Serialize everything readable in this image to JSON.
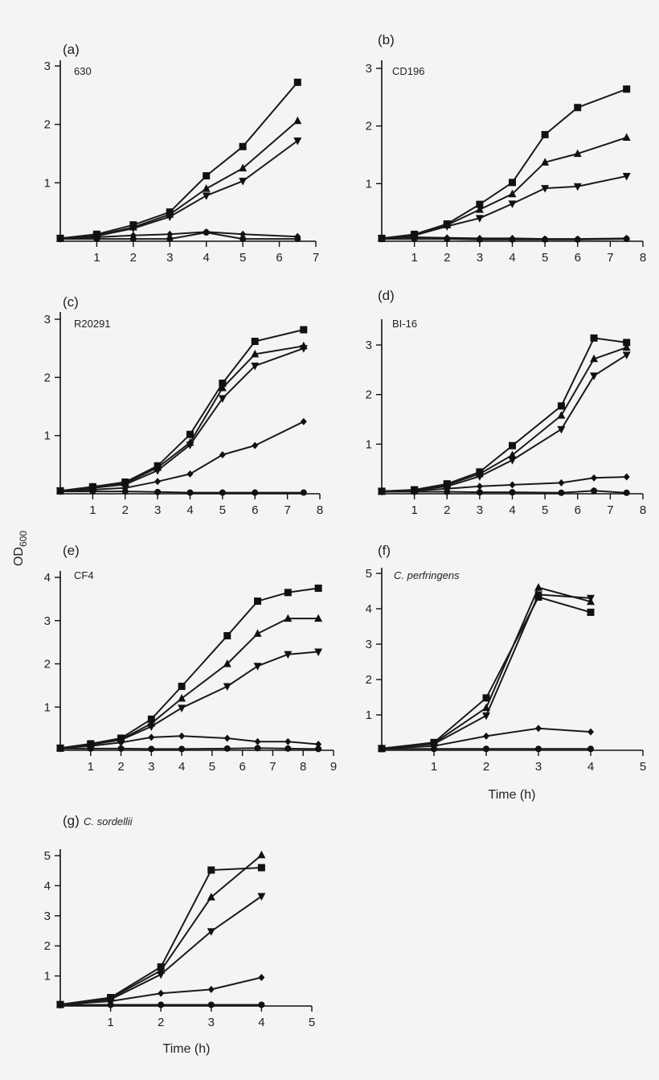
{
  "figure": {
    "ylabel_main": "OD",
    "ylabel_sub": "600"
  },
  "chart_data": [
    {
      "type": "line",
      "panel": "(a)",
      "strain": "630",
      "strain_italic": false,
      "xlim": [
        0,
        7
      ],
      "xticks": [
        1,
        2,
        3,
        4,
        5,
        6,
        7
      ],
      "ylim": [
        0,
        3
      ],
      "yticks": [
        1,
        2,
        3
      ],
      "xlabel": "",
      "series": [
        {
          "marker": "square",
          "x": [
            0,
            1,
            2,
            3,
            4,
            5,
            6.5
          ],
          "y": [
            0.05,
            0.12,
            0.28,
            0.5,
            1.12,
            1.62,
            2.72
          ]
        },
        {
          "marker": "triangle-up",
          "x": [
            0,
            1,
            2,
            3,
            4,
            5,
            6.5
          ],
          "y": [
            0.05,
            0.1,
            0.24,
            0.46,
            0.9,
            1.25,
            2.06
          ]
        },
        {
          "marker": "triangle-down",
          "x": [
            0,
            1,
            2,
            3,
            4,
            5,
            6.5
          ],
          "y": [
            0.05,
            0.09,
            0.22,
            0.42,
            0.78,
            1.03,
            1.72
          ]
        },
        {
          "marker": "diamond",
          "x": [
            0,
            1,
            2,
            3,
            4,
            5,
            6.5
          ],
          "y": [
            0.05,
            0.07,
            0.1,
            0.12,
            0.16,
            0.12,
            0.08
          ]
        },
        {
          "marker": "circle",
          "x": [
            0,
            1,
            2,
            3,
            4,
            5,
            6.5
          ],
          "y": [
            0.04,
            0.04,
            0.04,
            0.04,
            0.15,
            0.04,
            0.04
          ]
        }
      ]
    },
    {
      "type": "line",
      "panel": "(b)",
      "strain": "CD196",
      "strain_italic": false,
      "xlim": [
        0,
        8
      ],
      "xticks": [
        1,
        2,
        3,
        4,
        5,
        6,
        7,
        8
      ],
      "ylim": [
        0,
        3
      ],
      "yticks": [
        1,
        2,
        3
      ],
      "xlabel": "",
      "series": [
        {
          "marker": "square",
          "x": [
            0,
            1,
            2,
            3,
            4,
            5,
            6,
            7.5
          ],
          "y": [
            0.05,
            0.12,
            0.3,
            0.64,
            1.02,
            1.85,
            2.32,
            2.64
          ]
        },
        {
          "marker": "triangle-up",
          "x": [
            0,
            1,
            2,
            3,
            4,
            5,
            6,
            7.5
          ],
          "y": [
            0.05,
            0.11,
            0.28,
            0.55,
            0.82,
            1.37,
            1.52,
            1.8
          ]
        },
        {
          "marker": "triangle-down",
          "x": [
            0,
            1,
            2,
            3,
            4,
            5,
            6,
            7.5
          ],
          "y": [
            0.05,
            0.1,
            0.26,
            0.4,
            0.65,
            0.92,
            0.95,
            1.13
          ]
        },
        {
          "marker": "diamond",
          "x": [
            0,
            1,
            2,
            3,
            4,
            5,
            6,
            7.5
          ],
          "y": [
            0.06,
            0.07,
            0.06,
            0.05,
            0.05,
            0.04,
            0.04,
            0.05
          ]
        },
        {
          "marker": "circle",
          "x": [
            0,
            1,
            2,
            3,
            4,
            5,
            6,
            7.5
          ],
          "y": [
            0.04,
            0.04,
            0.04,
            0.03,
            0.03,
            0.03,
            0.03,
            0.04
          ]
        }
      ]
    },
    {
      "type": "line",
      "panel": "(c)",
      "strain": "R20291",
      "strain_italic": false,
      "xlim": [
        0,
        8
      ],
      "xticks": [
        1,
        2,
        3,
        4,
        5,
        6,
        7,
        8
      ],
      "ylim": [
        0,
        3
      ],
      "yticks": [
        1,
        2,
        3
      ],
      "xlabel": "",
      "series": [
        {
          "marker": "square",
          "x": [
            0,
            1,
            2,
            3,
            4,
            5,
            6,
            7.5
          ],
          "y": [
            0.05,
            0.12,
            0.2,
            0.48,
            1.02,
            1.9,
            2.62,
            2.82
          ]
        },
        {
          "marker": "triangle-up",
          "x": [
            0,
            1,
            2,
            3,
            4,
            5,
            6,
            7.5
          ],
          "y": [
            0.05,
            0.11,
            0.18,
            0.45,
            0.88,
            1.82,
            2.4,
            2.54
          ]
        },
        {
          "marker": "triangle-down",
          "x": [
            0,
            1,
            2,
            3,
            4,
            5,
            6,
            7.5
          ],
          "y": [
            0.05,
            0.1,
            0.16,
            0.4,
            0.84,
            1.64,
            2.2,
            2.5
          ]
        },
        {
          "marker": "diamond",
          "x": [
            0,
            1,
            2,
            3,
            4,
            5,
            6,
            7.5
          ],
          "y": [
            0.05,
            0.07,
            0.1,
            0.21,
            0.34,
            0.67,
            0.83,
            1.24
          ]
        },
        {
          "marker": "circle",
          "x": [
            0,
            1,
            2,
            3,
            4,
            5,
            6,
            7.5
          ],
          "y": [
            0.04,
            0.04,
            0.04,
            0.03,
            0.02,
            0.02,
            0.02,
            0.02
          ]
        }
      ]
    },
    {
      "type": "line",
      "panel": "(d)",
      "strain": "BI-16",
      "strain_italic": false,
      "xlim": [
        0,
        8
      ],
      "xticks": [
        1,
        2,
        3,
        4,
        5,
        6,
        7,
        8
      ],
      "ylim": [
        0,
        3.5
      ],
      "yticks": [
        1,
        2,
        3
      ],
      "xlabel": "",
      "series": [
        {
          "marker": "square",
          "x": [
            0,
            1,
            2,
            3,
            4,
            5.5,
            6.5,
            7.5
          ],
          "y": [
            0.05,
            0.08,
            0.2,
            0.44,
            0.97,
            1.77,
            3.14,
            3.05
          ]
        },
        {
          "marker": "triangle-up",
          "x": [
            0,
            1,
            2,
            3,
            4,
            5.5,
            6.5,
            7.5
          ],
          "y": [
            0.05,
            0.07,
            0.18,
            0.4,
            0.78,
            1.58,
            2.72,
            2.95
          ]
        },
        {
          "marker": "triangle-down",
          "x": [
            0,
            1,
            2,
            3,
            4,
            5.5,
            6.5,
            7.5
          ],
          "y": [
            0.05,
            0.07,
            0.15,
            0.35,
            0.68,
            1.3,
            2.38,
            2.8
          ]
        },
        {
          "marker": "diamond",
          "x": [
            0,
            1,
            2,
            3,
            4,
            5.5,
            6.5,
            7.5
          ],
          "y": [
            0.05,
            0.06,
            0.1,
            0.15,
            0.18,
            0.22,
            0.32,
            0.34
          ]
        },
        {
          "marker": "circle",
          "x": [
            0,
            1,
            2,
            3,
            4,
            5.5,
            6.5,
            7.5
          ],
          "y": [
            0.04,
            0.04,
            0.04,
            0.03,
            0.03,
            0.02,
            0.06,
            0.02
          ]
        }
      ]
    },
    {
      "type": "line",
      "panel": "(e)",
      "strain": "CF4",
      "strain_italic": false,
      "xlim": [
        0,
        9
      ],
      "xticks": [
        1,
        2,
        3,
        4,
        5,
        6,
        7,
        8,
        9
      ],
      "ylim": [
        0,
        4
      ],
      "yticks": [
        1,
        2,
        3,
        4
      ],
      "xlabel": "",
      "series": [
        {
          "marker": "square",
          "x": [
            0,
            1,
            2,
            3,
            4,
            5.5,
            6.5,
            7.5,
            8.5
          ],
          "y": [
            0.05,
            0.15,
            0.28,
            0.72,
            1.48,
            2.65,
            3.45,
            3.65,
            3.75
          ]
        },
        {
          "marker": "triangle-up",
          "x": [
            0,
            1,
            2,
            3,
            4,
            5.5,
            6.5,
            7.5,
            8.5
          ],
          "y": [
            0.05,
            0.14,
            0.25,
            0.62,
            1.2,
            2.0,
            2.7,
            3.05,
            3.05
          ]
        },
        {
          "marker": "triangle-down",
          "x": [
            0,
            1,
            2,
            3,
            4,
            5.5,
            6.5,
            7.5,
            8.5
          ],
          "y": [
            0.05,
            0.13,
            0.24,
            0.55,
            0.98,
            1.48,
            1.95,
            2.22,
            2.28
          ]
        },
        {
          "marker": "diamond",
          "x": [
            0,
            1,
            2,
            3,
            4,
            5.5,
            6.5,
            7.5,
            8.5
          ],
          "y": [
            0.05,
            0.1,
            0.18,
            0.3,
            0.33,
            0.28,
            0.2,
            0.2,
            0.14
          ]
        },
        {
          "marker": "circle",
          "x": [
            0,
            1,
            2,
            3,
            4,
            5.5,
            6.5,
            7.5,
            8.5
          ],
          "y": [
            0.04,
            0.04,
            0.04,
            0.03,
            0.03,
            0.04,
            0.05,
            0.04,
            0.03
          ]
        }
      ]
    },
    {
      "type": "line",
      "panel": "(f)",
      "strain": "C. perfringens",
      "strain_italic": true,
      "xlim": [
        0,
        5
      ],
      "xticks": [
        1,
        2,
        3,
        4,
        5
      ],
      "ylim": [
        0,
        5
      ],
      "yticks": [
        1,
        2,
        3,
        4,
        5
      ],
      "xlabel": "Time (h)",
      "series": [
        {
          "marker": "square",
          "x": [
            0,
            1,
            2,
            3,
            4
          ],
          "y": [
            0.05,
            0.22,
            1.48,
            4.33,
            3.9
          ]
        },
        {
          "marker": "triangle-up",
          "x": [
            0,
            1,
            2,
            3,
            4
          ],
          "y": [
            0.05,
            0.2,
            1.2,
            4.6,
            4.2
          ]
        },
        {
          "marker": "triangle-down",
          "x": [
            0,
            1,
            2,
            3,
            4
          ],
          "y": [
            0.05,
            0.18,
            0.98,
            4.4,
            4.3
          ]
        },
        {
          "marker": "diamond",
          "x": [
            0,
            1,
            2,
            3,
            4
          ],
          "y": [
            0.05,
            0.12,
            0.4,
            0.62,
            0.52
          ]
        },
        {
          "marker": "circle",
          "x": [
            0,
            1,
            2,
            3,
            4
          ],
          "y": [
            0.04,
            0.04,
            0.04,
            0.04,
            0.04
          ]
        }
      ]
    },
    {
      "type": "line",
      "panel": "(g)",
      "strain": "C. sordellii",
      "strain_italic": true,
      "xlim": [
        0,
        5
      ],
      "xticks": [
        1,
        2,
        3,
        4,
        5
      ],
      "ylim": [
        0,
        5
      ],
      "yticks": [
        1,
        2,
        3,
        4,
        5
      ],
      "xlabel": "Time (h)",
      "series": [
        {
          "marker": "square",
          "x": [
            0,
            1,
            2,
            3,
            4
          ],
          "y": [
            0.05,
            0.28,
            1.3,
            4.52,
            4.6
          ]
        },
        {
          "marker": "triangle-up",
          "x": [
            0,
            1,
            2,
            3,
            4
          ],
          "y": [
            0.05,
            0.26,
            1.18,
            3.62,
            5.02
          ]
        },
        {
          "marker": "triangle-down",
          "x": [
            0,
            1,
            2,
            3,
            4
          ],
          "y": [
            0.05,
            0.22,
            1.05,
            2.48,
            3.65
          ]
        },
        {
          "marker": "diamond",
          "x": [
            0,
            1,
            2,
            3,
            4
          ],
          "y": [
            0.05,
            0.16,
            0.42,
            0.55,
            0.95
          ]
        },
        {
          "marker": "circle",
          "x": [
            0,
            1,
            2,
            3,
            4
          ],
          "y": [
            0.04,
            0.04,
            0.04,
            0.04,
            0.04
          ]
        }
      ]
    }
  ]
}
